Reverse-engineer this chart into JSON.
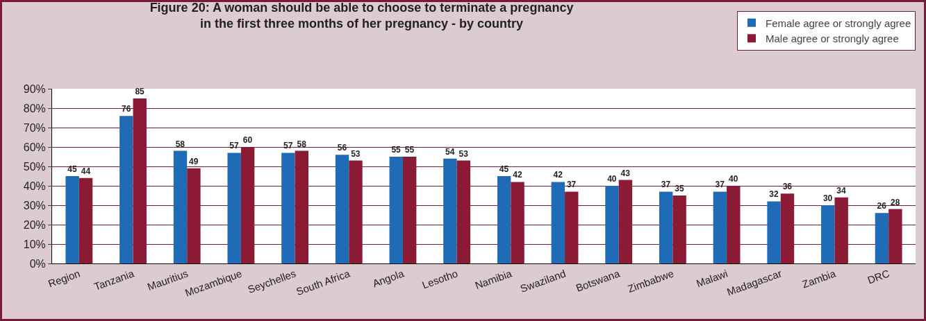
{
  "chart_data": {
    "type": "bar",
    "title": "Figure 20: A woman should be able to choose to terminate a pregnancy\nin the first three months of her pregnancy - by country",
    "categories": [
      "Region",
      "Tanzania",
      "Mauritius",
      "Mozambique",
      "Seychelles",
      "South Africa",
      "Angola",
      "Lesotho",
      "Namibia",
      "Swaziland",
      "Botswana",
      "Zimbabwe",
      "Malawi",
      "Madagascar",
      "Zambia",
      "DRC"
    ],
    "series": [
      {
        "name": "Female agree or strongly agree",
        "color": "#1f6bb5",
        "values": [
          45,
          76,
          58,
          57,
          57,
          56,
          55,
          54,
          45,
          42,
          40,
          37,
          37,
          32,
          30,
          26
        ]
      },
      {
        "name": "Male agree or strongly agree",
        "color": "#8b1a35",
        "values": [
          44,
          85,
          49,
          60,
          58,
          53,
          55,
          53,
          42,
          37,
          43,
          35,
          40,
          36,
          34,
          28
        ]
      }
    ],
    "ylim": [
      0,
      90
    ],
    "yticks": [
      {
        "value": 0,
        "label": "0%"
      },
      {
        "value": 10,
        "label": "10%"
      },
      {
        "value": 20,
        "label": "20%"
      },
      {
        "value": 30,
        "label": "30%"
      },
      {
        "value": 40,
        "label": "40%"
      },
      {
        "value": 50,
        "label": "50%"
      },
      {
        "value": 60,
        "label": "60%"
      },
      {
        "value": 70,
        "label": "70%"
      },
      {
        "value": 80,
        "label": "80%"
      },
      {
        "value": 90,
        "label": "90%"
      }
    ],
    "grid": "y",
    "legend": "top right",
    "data_labels": true
  }
}
